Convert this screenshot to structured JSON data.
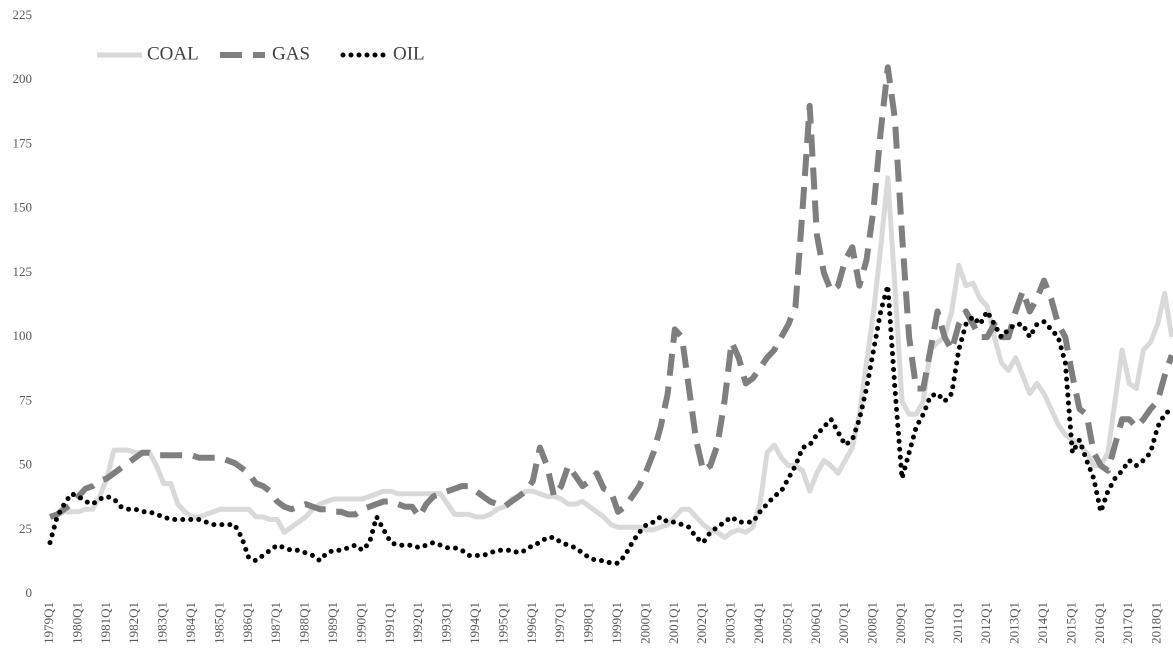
{
  "chart_data": {
    "type": "line",
    "legend": "upper left",
    "categories": [
      "1979Q1",
      null,
      null,
      null,
      "1980Q1",
      null,
      null,
      null,
      "1981Q1",
      null,
      null,
      null,
      "1982Q1",
      null,
      null,
      null,
      "1983Q1",
      null,
      null,
      null,
      "1984Q1",
      null,
      null,
      null,
      "1985Q1",
      null,
      null,
      null,
      "1986Q1",
      null,
      null,
      null,
      "1987Q1",
      null,
      null,
      null,
      "1988Q1",
      null,
      null,
      null,
      "1989Q1",
      null,
      null,
      null,
      "1990Q1",
      null,
      null,
      null,
      "1991Q1",
      null,
      null,
      null,
      "1992Q1",
      null,
      null,
      null,
      "1993Q1",
      null,
      null,
      null,
      "1994Q1",
      null,
      null,
      null,
      "1995Q1",
      null,
      null,
      null,
      "1996Q1",
      null,
      null,
      null,
      "1997Q1",
      null,
      null,
      null,
      "1998Q1",
      null,
      null,
      null,
      "1999Q1",
      null,
      null,
      null,
      "2000Q1",
      null,
      null,
      null,
      "2001Q1",
      null,
      null,
      null,
      "2002Q1",
      null,
      null,
      null,
      "2003Q1",
      null,
      null,
      null,
      "2004Q1",
      null,
      null,
      null,
      "2005Q1",
      null,
      null,
      null,
      "2006Q1",
      null,
      null,
      null,
      "2007Q1",
      null,
      null,
      null,
      "2008Q1",
      null,
      null,
      null,
      "2009Q1",
      null,
      null,
      null,
      "2010Q1",
      null,
      null,
      null,
      "2011Q1",
      null,
      null,
      null,
      "2012Q1",
      null,
      null,
      null,
      "2013Q1",
      null,
      null,
      null,
      "2014Q1",
      null,
      null,
      null,
      "2015Q1",
      null,
      null,
      null,
      "2016Q1",
      null,
      null,
      null,
      "2017Q1",
      null,
      null,
      null,
      "2018Q1",
      null,
      null
    ],
    "ylim": [
      0,
      225
    ],
    "yticks": [
      0,
      25,
      50,
      75,
      100,
      125,
      150,
      175,
      200,
      225
    ],
    "series": [
      {
        "name": "COAL",
        "color": "#d9d9d9",
        "style": "solid",
        "values": [
          30,
          31,
          32,
          32,
          32,
          33,
          33,
          38,
          45,
          56,
          56,
          56,
          55,
          55,
          55,
          50,
          43,
          43,
          35,
          32,
          30,
          30,
          31,
          32,
          33,
          33,
          33,
          33,
          33,
          30,
          30,
          29,
          29,
          24,
          26,
          28,
          30,
          33,
          35,
          36,
          37,
          37,
          37,
          37,
          37,
          38,
          39,
          40,
          40,
          39,
          39,
          39,
          39,
          39,
          39,
          39,
          35,
          31,
          31,
          31,
          30,
          30,
          31,
          33,
          34,
          37,
          38,
          40,
          40,
          39,
          38,
          38,
          37,
          35,
          35,
          36,
          34,
          32,
          30,
          27,
          26,
          26,
          26,
          26,
          25,
          25,
          26,
          27,
          30,
          33,
          33,
          30,
          27,
          25,
          24,
          22,
          24,
          25,
          24,
          26,
          35,
          55,
          58,
          53,
          50,
          50,
          48,
          40,
          47,
          52,
          50,
          47,
          52,
          57,
          70,
          90,
          110,
          135,
          162,
          120,
          75,
          70,
          70,
          75,
          95,
          98,
          100,
          110,
          128,
          120,
          121,
          115,
          112,
          100,
          90,
          87,
          92,
          85,
          78,
          82,
          78,
          72,
          66,
          62,
          60,
          58,
          55,
          50,
          50,
          55,
          75,
          95,
          82,
          80,
          95,
          98,
          105,
          117,
          100
        ]
      },
      {
        "name": "GAS",
        "color": "#7f7f7f",
        "style": "dashed",
        "values": [
          30,
          31,
          33,
          35,
          38,
          41,
          42,
          44,
          45,
          47,
          49,
          51,
          53,
          55,
          55,
          54,
          54,
          54,
          54,
          54,
          54,
          53,
          53,
          53,
          53,
          52,
          51,
          49,
          47,
          43,
          42,
          40,
          36,
          34,
          33,
          34,
          35,
          34,
          33,
          33,
          32,
          32,
          31,
          31,
          33,
          34,
          35,
          36,
          36,
          35,
          34,
          34,
          30,
          35,
          38,
          39,
          40,
          41,
          42,
          42,
          40,
          38,
          36,
          35,
          34,
          36,
          38,
          40,
          44,
          57,
          50,
          38,
          42,
          50,
          46,
          42,
          44,
          47,
          41,
          40,
          32,
          34,
          38,
          42,
          48,
          55,
          65,
          78,
          103,
          100,
          80,
          60,
          48,
          50,
          58,
          75,
          98,
          92,
          82,
          84,
          88,
          92,
          95,
          100,
          105,
          112,
          150,
          190,
          140,
          125,
          118,
          120,
          130,
          135,
          120,
          130,
          150,
          180,
          205,
          185,
          140,
          100,
          80,
          80,
          95,
          110,
          100,
          95,
          105,
          110,
          105,
          100,
          100,
          105,
          100,
          100,
          110,
          118,
          110,
          115,
          122,
          115,
          105,
          100,
          85,
          72,
          70,
          55,
          50,
          48,
          58,
          68,
          68,
          65,
          68,
          72,
          75,
          85,
          93
        ]
      },
      {
        "name": "OIL",
        "color": "#000000",
        "style": "dotted",
        "values": [
          20,
          30,
          35,
          39,
          38,
          36,
          35,
          37,
          38,
          37,
          34,
          33,
          33,
          32,
          32,
          31,
          30,
          29,
          29,
          29,
          29,
          29,
          28,
          27,
          27,
          27,
          27,
          22,
          14,
          13,
          15,
          17,
          19,
          18,
          17,
          17,
          16,
          15,
          13,
          16,
          17,
          17,
          18,
          19,
          17,
          20,
          30,
          25,
          20,
          19,
          19,
          19,
          18,
          19,
          20,
          19,
          18,
          18,
          17,
          15,
          15,
          15,
          16,
          17,
          17,
          17,
          16,
          17,
          19,
          20,
          22,
          22,
          20,
          19,
          18,
          16,
          14,
          13,
          13,
          12,
          12,
          15,
          20,
          24,
          27,
          28,
          30,
          28,
          28,
          27,
          26,
          22,
          20,
          24,
          26,
          28,
          30,
          28,
          28,
          28,
          32,
          35,
          38,
          40,
          45,
          50,
          57,
          58,
          62,
          65,
          68,
          63,
          58,
          60,
          68,
          80,
          95,
          110,
          120,
          80,
          45,
          55,
          65,
          70,
          77,
          78,
          75,
          78,
          95,
          105,
          108,
          105,
          110,
          105,
          100,
          103,
          105,
          105,
          100,
          105,
          106,
          103,
          100,
          90,
          55,
          60,
          52,
          45,
          32,
          40,
          45,
          48,
          52,
          50,
          52,
          55,
          65,
          70,
          72
        ]
      }
    ]
  }
}
